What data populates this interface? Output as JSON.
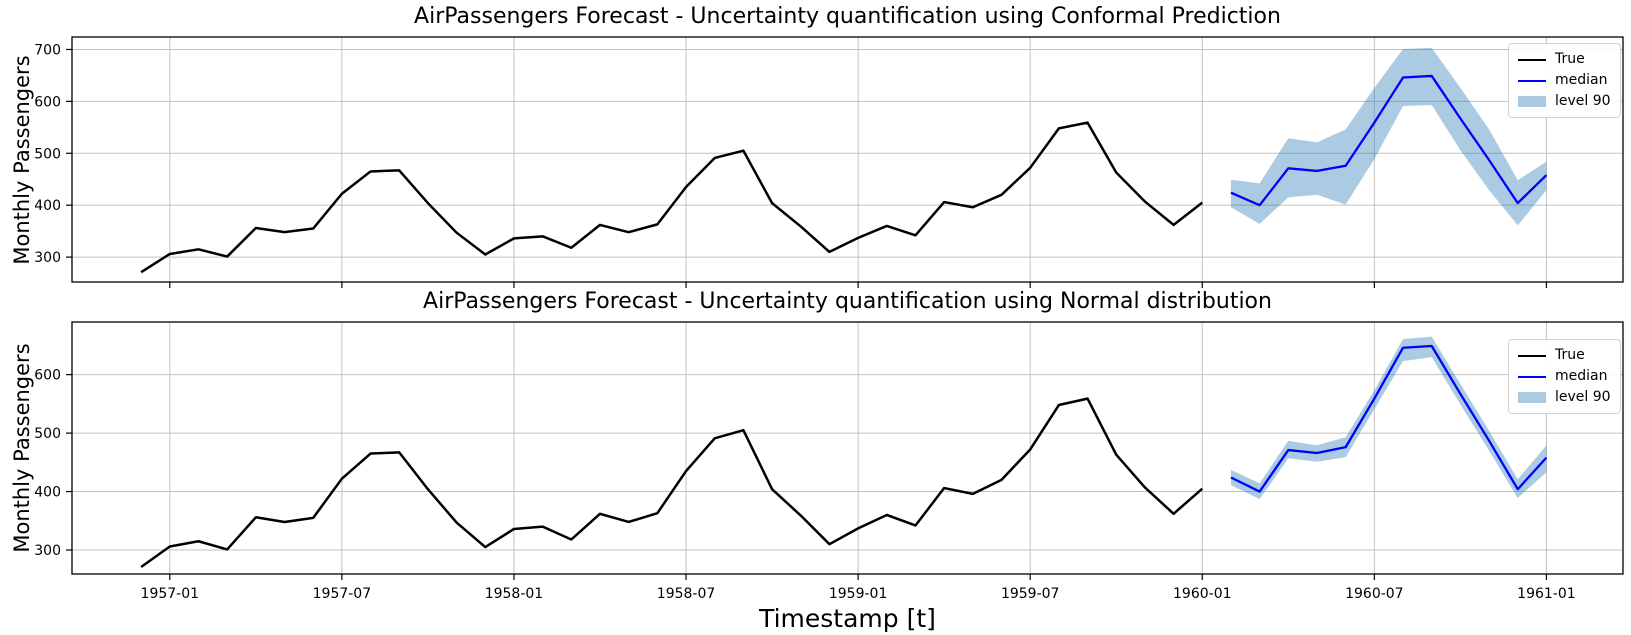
{
  "figure": {
    "xlabel": "Timestamp [t]"
  },
  "style": {
    "background": "#ffffff",
    "true_color": "#000000",
    "median_color": "#0000ff",
    "band_fill": "rgba(31,119,180,0.38)",
    "band_base_color": "#1f77b4",
    "grid_color": "#c2c2c2",
    "spine_color": "#000000"
  },
  "legend": {
    "true_label": "True",
    "median_label": "median",
    "band_label": "level 90"
  },
  "chart_data": [
    {
      "type": "line",
      "title": "AirPassengers Forecast - Uncertainty quantification using Conformal Prediction",
      "ylabel": "Monthly Passengers",
      "ylim": [
        252,
        724
      ],
      "yticks": [
        300,
        400,
        500,
        600,
        700
      ],
      "x_range_index": [
        -2.41,
        51.67
      ],
      "show_xtick_labels": false,
      "xticks": [
        {
          "i": 1,
          "label": "1957-01"
        },
        {
          "i": 7,
          "label": "1957-07"
        },
        {
          "i": 13,
          "label": "1958-01"
        },
        {
          "i": 19,
          "label": "1958-07"
        },
        {
          "i": 25,
          "label": "1959-01"
        },
        {
          "i": 31,
          "label": "1959-07"
        },
        {
          "i": 37,
          "label": "1960-01"
        },
        {
          "i": 43,
          "label": "1960-07"
        },
        {
          "i": 49,
          "label": "1961-01"
        }
      ],
      "true_series": {
        "name": "True",
        "x": [
          "1956-12",
          "1957-01",
          "1957-02",
          "1957-03",
          "1957-04",
          "1957-05",
          "1957-06",
          "1957-07",
          "1957-08",
          "1957-09",
          "1957-10",
          "1957-11",
          "1957-12",
          "1958-01",
          "1958-02",
          "1958-03",
          "1958-04",
          "1958-05",
          "1958-06",
          "1958-07",
          "1958-08",
          "1958-09",
          "1958-10",
          "1958-11",
          "1958-12",
          "1959-01",
          "1959-02",
          "1959-03",
          "1959-04",
          "1959-05",
          "1959-06",
          "1959-07",
          "1959-08",
          "1959-09",
          "1959-10",
          "1959-11",
          "1959-12",
          "1960-01"
        ],
        "values": [
          271,
          306,
          315,
          301,
          356,
          348,
          355,
          422,
          465,
          467,
          404,
          347,
          305,
          336,
          340,
          318,
          362,
          348,
          363,
          435,
          491,
          505,
          404,
          359,
          310,
          337,
          360,
          342,
          406,
          396,
          420,
          472,
          548,
          559,
          463,
          407,
          362,
          405
        ]
      },
      "forecast": {
        "name": "median",
        "level": 90,
        "start_index": 38,
        "x": [
          "1960-02",
          "1960-03",
          "1960-04",
          "1960-05",
          "1960-06",
          "1960-07",
          "1960-08",
          "1960-09",
          "1960-10",
          "1960-11",
          "1960-12",
          "1961-01"
        ],
        "median": [
          424,
          400,
          471,
          466,
          476,
          559,
          646,
          649,
          567,
          487,
          404,
          458
        ],
        "lo": [
          396,
          364,
          415,
          420,
          401,
          489,
          591,
          593,
          506,
          429,
          361,
          429
        ],
        "hi": [
          449,
          442,
          529,
          521,
          546,
          626,
          701,
          703,
          626,
          546,
          448,
          484
        ]
      }
    },
    {
      "type": "line",
      "title": "AirPassengers Forecast - Uncertainty quantification using Normal distribution",
      "ylabel": "Monthly Passengers",
      "ylim": [
        259,
        690
      ],
      "yticks": [
        300,
        400,
        500,
        600
      ],
      "x_range_index": [
        -2.41,
        51.67
      ],
      "show_xtick_labels": true,
      "xticks": [
        {
          "i": 1,
          "label": "1957-01"
        },
        {
          "i": 7,
          "label": "1957-07"
        },
        {
          "i": 13,
          "label": "1958-01"
        },
        {
          "i": 19,
          "label": "1958-07"
        },
        {
          "i": 25,
          "label": "1959-01"
        },
        {
          "i": 31,
          "label": "1959-07"
        },
        {
          "i": 37,
          "label": "1960-01"
        },
        {
          "i": 43,
          "label": "1960-07"
        },
        {
          "i": 49,
          "label": "1961-01"
        }
      ],
      "true_series": {
        "name": "True",
        "x": [
          "1956-12",
          "1957-01",
          "1957-02",
          "1957-03",
          "1957-04",
          "1957-05",
          "1957-06",
          "1957-07",
          "1957-08",
          "1957-09",
          "1957-10",
          "1957-11",
          "1957-12",
          "1958-01",
          "1958-02",
          "1958-03",
          "1958-04",
          "1958-05",
          "1958-06",
          "1958-07",
          "1958-08",
          "1958-09",
          "1958-10",
          "1958-11",
          "1958-12",
          "1959-01",
          "1959-02",
          "1959-03",
          "1959-04",
          "1959-05",
          "1959-06",
          "1959-07",
          "1959-08",
          "1959-09",
          "1959-10",
          "1959-11",
          "1959-12",
          "1960-01"
        ],
        "values": [
          271,
          306,
          315,
          301,
          356,
          348,
          355,
          422,
          465,
          467,
          404,
          347,
          305,
          336,
          340,
          318,
          362,
          348,
          363,
          435,
          491,
          505,
          404,
          359,
          310,
          337,
          360,
          342,
          406,
          396,
          420,
          472,
          548,
          559,
          463,
          407,
          362,
          405
        ]
      },
      "forecast": {
        "name": "median",
        "level": 90,
        "start_index": 38,
        "x": [
          "1960-02",
          "1960-03",
          "1960-04",
          "1960-05",
          "1960-06",
          "1960-07",
          "1960-08",
          "1960-09",
          "1960-10",
          "1960-11",
          "1960-12",
          "1961-01"
        ],
        "median": [
          424,
          400,
          471,
          466,
          476,
          559,
          646,
          649,
          567,
          487,
          404,
          458
        ],
        "lo": [
          411,
          387,
          457,
          451,
          459,
          541,
          623,
          630,
          549,
          470,
          389,
          433
        ],
        "hi": [
          437,
          414,
          487,
          479,
          493,
          573,
          661,
          665,
          584,
          504,
          421,
          479
        ]
      }
    }
  ]
}
